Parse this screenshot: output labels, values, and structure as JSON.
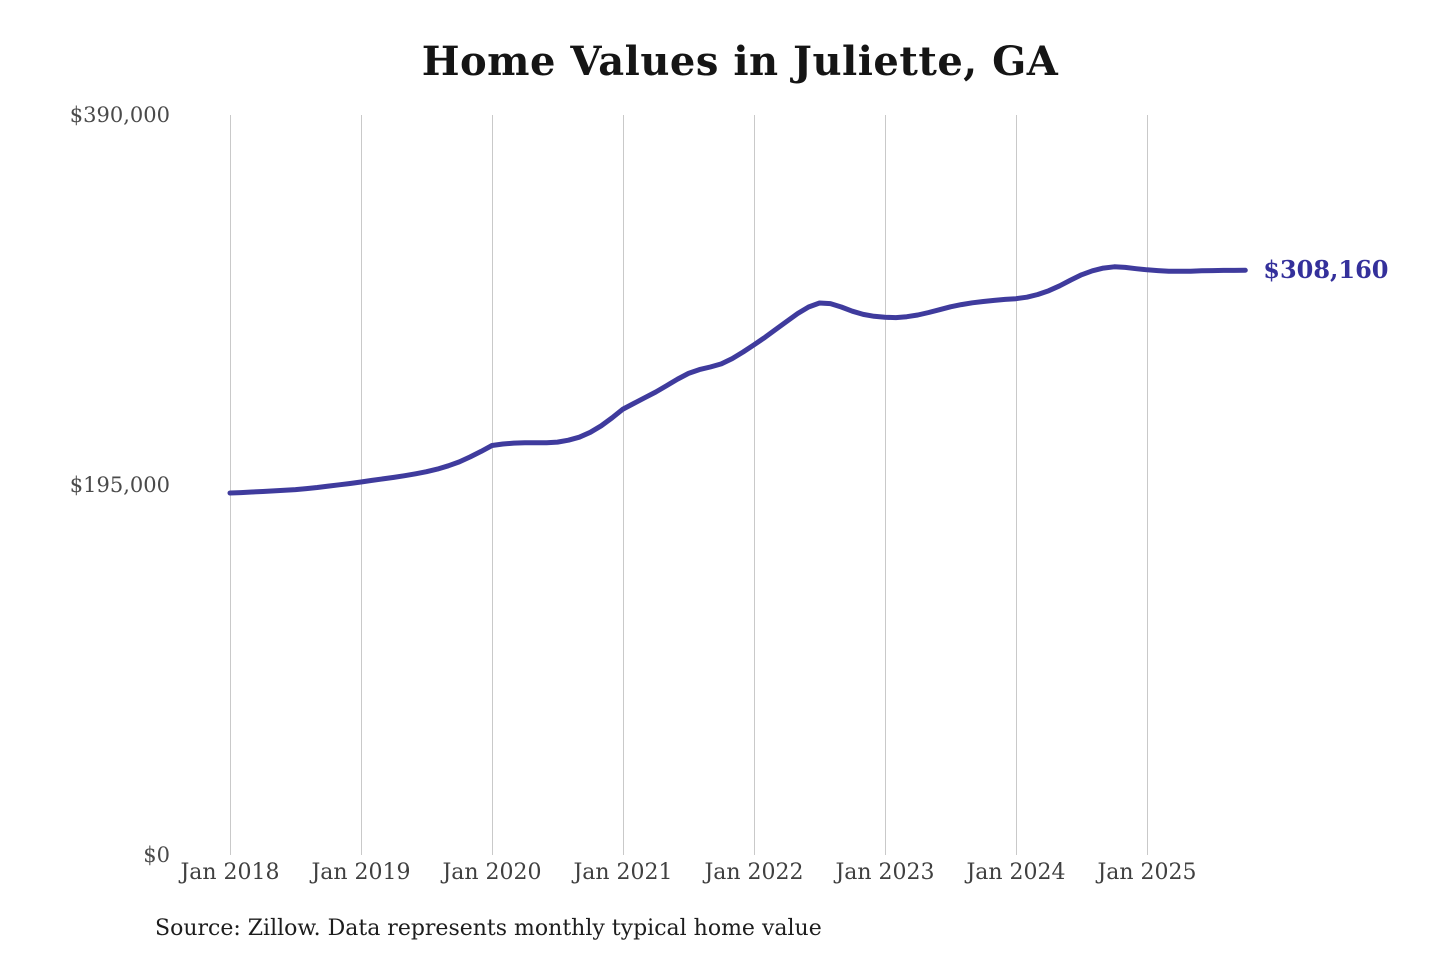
{
  "page": {
    "background": "#ffffff"
  },
  "chart": {
    "title": "Home Values in Juliette, GA",
    "end_label": "$308,160",
    "source_note": "Source: Zillow. Data represents monthly typical home value",
    "colors": {
      "line": "#3f3b9d",
      "end_label": "#34309b",
      "gridline": "#c9c9c9",
      "tick_label": "#4a4a4a",
      "title": "#151515",
      "source": "#1d1d1d"
    }
  },
  "chart_data": {
    "type": "line",
    "title": "Home Values in Juliette, GA",
    "xlabel": "",
    "ylabel": "",
    "ylim": [
      0,
      390000
    ],
    "grid": "vertical-only",
    "legend": "none",
    "x_tick_labels": [
      "Jan 2018",
      "Jan 2019",
      "Jan 2020",
      "Jan 2021",
      "Jan 2022",
      "Jan 2023",
      "Jan 2024",
      "Jan 2025"
    ],
    "y_tick_labels": [
      "$0",
      "$195,000",
      "$390,000"
    ],
    "y_tick_values": [
      0,
      195000,
      390000
    ],
    "end_annotation": {
      "text": "$308,160",
      "value": 308160
    },
    "series": [
      {
        "name": "Monthly typical home value",
        "months": [
          "2018-01",
          "2018-02",
          "2018-03",
          "2018-04",
          "2018-05",
          "2018-06",
          "2018-07",
          "2018-08",
          "2018-09",
          "2018-10",
          "2018-11",
          "2018-12",
          "2019-01",
          "2019-02",
          "2019-03",
          "2019-04",
          "2019-05",
          "2019-06",
          "2019-07",
          "2019-08",
          "2019-09",
          "2019-10",
          "2019-11",
          "2019-12",
          "2020-01",
          "2020-02",
          "2020-03",
          "2020-04",
          "2020-05",
          "2020-06",
          "2020-07",
          "2020-08",
          "2020-09",
          "2020-10",
          "2020-11",
          "2020-12",
          "2021-01",
          "2021-02",
          "2021-03",
          "2021-04",
          "2021-05",
          "2021-06",
          "2021-07",
          "2021-08",
          "2021-09",
          "2021-10",
          "2021-11",
          "2021-12",
          "2022-01",
          "2022-02",
          "2022-03",
          "2022-04",
          "2022-05",
          "2022-06",
          "2022-07",
          "2022-08",
          "2022-09",
          "2022-10",
          "2022-11",
          "2022-12",
          "2023-01",
          "2023-02",
          "2023-03",
          "2023-04",
          "2023-05",
          "2023-06",
          "2023-07",
          "2023-08",
          "2023-09",
          "2023-10",
          "2023-11",
          "2023-12",
          "2024-01",
          "2024-02",
          "2024-03",
          "2024-04",
          "2024-05",
          "2024-06",
          "2024-07",
          "2024-08",
          "2024-09",
          "2024-10",
          "2024-11",
          "2024-12",
          "2025-01",
          "2025-02",
          "2025-03",
          "2025-04",
          "2025-05",
          "2025-06",
          "2025-07",
          "2025-08",
          "2025-09",
          "2025-10"
        ],
        "values": [
          190800,
          191000,
          191300,
          191600,
          191900,
          192200,
          192600,
          193100,
          193700,
          194400,
          195100,
          195800,
          196600,
          197400,
          198200,
          199000,
          199900,
          200900,
          202000,
          203400,
          205100,
          207200,
          209800,
          212700,
          215800,
          216600,
          217100,
          217300,
          217300,
          217300,
          217600,
          218600,
          220200,
          222800,
          226200,
          230400,
          235000,
          238000,
          241000,
          244000,
          247400,
          250800,
          253800,
          255800,
          257200,
          258800,
          261600,
          265100,
          268900,
          272800,
          277000,
          281200,
          285400,
          288800,
          290900,
          290600,
          288800,
          286600,
          284900,
          283900,
          283400,
          283200,
          283700,
          284600,
          285900,
          287400,
          288900,
          290100,
          291000,
          291700,
          292300,
          292800,
          293200,
          294000,
          295400,
          297400,
          300000,
          303000,
          305800,
          307900,
          309300,
          310000,
          309700,
          309000,
          308400,
          308000,
          307700,
          307600,
          307700,
          307900,
          308000,
          308100,
          308100,
          308160
        ]
      }
    ]
  }
}
